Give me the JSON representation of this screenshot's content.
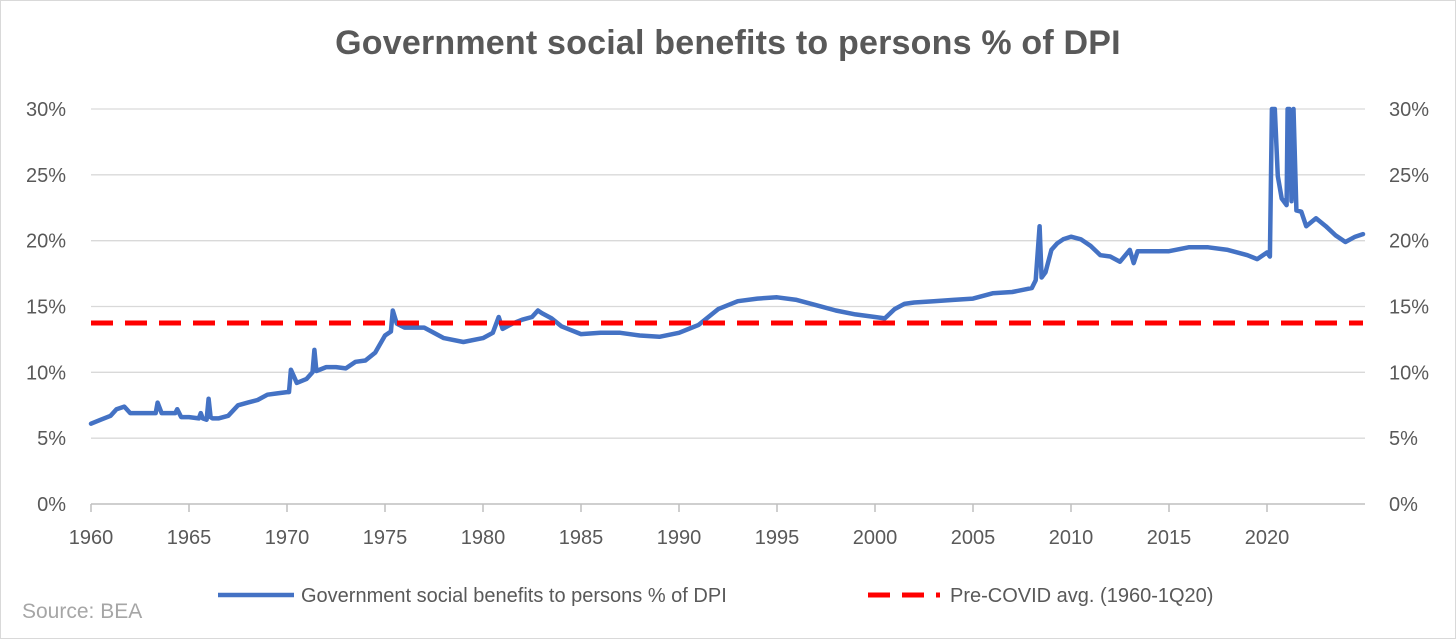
{
  "chart_data": {
    "type": "line",
    "title": "Government social benefits to persons % of DPI",
    "source": "Source: BEA",
    "xlim": [
      1960,
      2025
    ],
    "ylim": [
      0,
      0.3
    ],
    "x_ticks": [
      1960,
      1965,
      1970,
      1975,
      1980,
      1985,
      1990,
      1995,
      2000,
      2005,
      2010,
      2015,
      2020
    ],
    "x_tick_labels": [
      "1960",
      "1965",
      "1970",
      "1975",
      "1980",
      "1985",
      "1990",
      "1995",
      "2000",
      "2005",
      "2010",
      "2015",
      "2020"
    ],
    "y_ticks": [
      0,
      0.05,
      0.1,
      0.15,
      0.2,
      0.25,
      0.3
    ],
    "y_tick_labels": [
      "0%",
      "5%",
      "10%",
      "15%",
      "20%",
      "25%",
      "30%"
    ],
    "secondary_y_axis": true,
    "grid": "horizontal",
    "legend_position": "bottom",
    "colors": {
      "series": "#4472c4",
      "average": "#ff0000",
      "grid": "#d9d9d9",
      "text": "#595959",
      "source": "#a6a6a6"
    },
    "series": [
      {
        "name": "Government social benefits to persons % of DPI",
        "style": "solid",
        "color": "#4472c4",
        "x": [
          1960.0,
          1960.5,
          1961.0,
          1961.3,
          1961.7,
          1962.0,
          1962.5,
          1963.0,
          1963.3,
          1963.4,
          1963.6,
          1964.0,
          1964.3,
          1964.4,
          1964.6,
          1965.0,
          1965.5,
          1965.6,
          1965.7,
          1965.9,
          1966.0,
          1966.1,
          1966.2,
          1966.5,
          1967.0,
          1967.5,
          1968.0,
          1968.5,
          1969.0,
          1969.5,
          1970.0,
          1970.1,
          1970.2,
          1970.5,
          1971.0,
          1971.3,
          1971.4,
          1971.5,
          1972.0,
          1972.5,
          1973.0,
          1973.5,
          1974.0,
          1974.5,
          1975.0,
          1975.3,
          1975.4,
          1975.6,
          1976.0,
          1977.0,
          1978.0,
          1979.0,
          1980.0,
          1980.5,
          1980.8,
          1981.0,
          1981.5,
          1982.0,
          1982.5,
          1982.8,
          1983.0,
          1983.5,
          1984.0,
          1985.0,
          1986.0,
          1987.0,
          1988.0,
          1989.0,
          1990.0,
          1990.5,
          1991.0,
          1992.0,
          1993.0,
          1994.0,
          1995.0,
          1996.0,
          1997.0,
          1998.0,
          1999.0,
          2000.0,
          2000.5,
          2001.0,
          2001.5,
          2002.0,
          2003.0,
          2004.0,
          2005.0,
          2006.0,
          2007.0,
          2008.0,
          2008.2,
          2008.4,
          2008.5,
          2008.7,
          2009.0,
          2009.3,
          2009.6,
          2010.0,
          2010.5,
          2011.0,
          2011.5,
          2012.0,
          2012.5,
          2013.0,
          2013.2,
          2013.4,
          2014.0,
          2015.0,
          2016.0,
          2017.0,
          2018.0,
          2019.0,
          2019.5,
          2020.0,
          2020.15,
          2020.25,
          2020.4,
          2020.55,
          2020.75,
          2021.0,
          2021.05,
          2021.15,
          2021.25,
          2021.35,
          2021.5,
          2021.75,
          2022.0,
          2022.5,
          2023.0,
          2023.5,
          2024.0,
          2024.5,
          2024.9
        ],
        "y": [
          0.061,
          0.064,
          0.067,
          0.072,
          0.074,
          0.069,
          0.069,
          0.069,
          0.069,
          0.077,
          0.069,
          0.069,
          0.069,
          0.072,
          0.066,
          0.066,
          0.065,
          0.069,
          0.065,
          0.064,
          0.08,
          0.066,
          0.065,
          0.065,
          0.067,
          0.075,
          0.077,
          0.079,
          0.083,
          0.084,
          0.085,
          0.085,
          0.102,
          0.092,
          0.095,
          0.1,
          0.117,
          0.101,
          0.104,
          0.104,
          0.103,
          0.108,
          0.109,
          0.115,
          0.128,
          0.131,
          0.147,
          0.137,
          0.134,
          0.134,
          0.126,
          0.123,
          0.126,
          0.13,
          0.142,
          0.133,
          0.137,
          0.14,
          0.142,
          0.147,
          0.145,
          0.141,
          0.135,
          0.129,
          0.13,
          0.13,
          0.128,
          0.127,
          0.13,
          0.133,
          0.136,
          0.148,
          0.154,
          0.156,
          0.157,
          0.155,
          0.151,
          0.147,
          0.144,
          0.142,
          0.141,
          0.148,
          0.152,
          0.153,
          0.154,
          0.155,
          0.156,
          0.16,
          0.161,
          0.164,
          0.17,
          0.211,
          0.172,
          0.176,
          0.193,
          0.198,
          0.201,
          0.203,
          0.201,
          0.196,
          0.189,
          0.188,
          0.184,
          0.193,
          0.183,
          0.192,
          0.192,
          0.192,
          0.195,
          0.195,
          0.193,
          0.189,
          0.186,
          0.191,
          0.188,
          0.3,
          0.3,
          0.249,
          0.232,
          0.227,
          0.3,
          0.3,
          0.23,
          0.3,
          0.223,
          0.222,
          0.211,
          0.217,
          0.211,
          0.204,
          0.199,
          0.203,
          0.205
        ]
      },
      {
        "name": "Pre-COVID avg. (1960-1Q20)",
        "style": "dashed",
        "color": "#ff0000",
        "x": [
          1960,
          2024.9
        ],
        "y": [
          0.1375,
          0.1375
        ]
      }
    ]
  }
}
